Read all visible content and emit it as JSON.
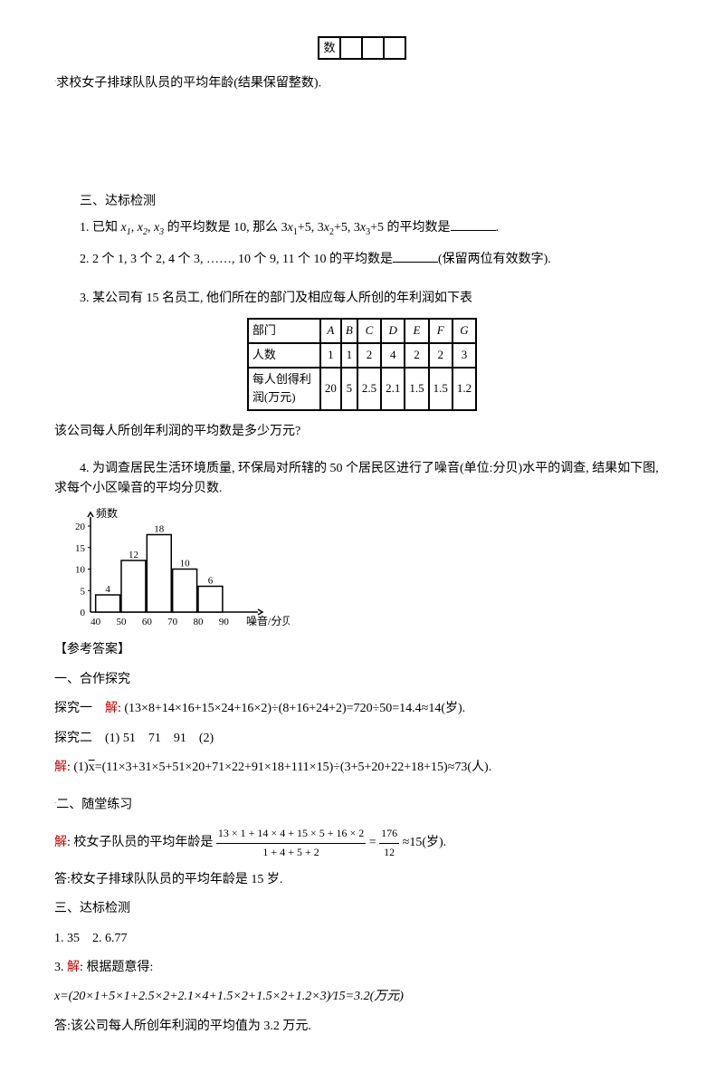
{
  "topTable": {
    "cells": [
      "数",
      "",
      "",
      ""
    ]
  },
  "q0": {
    "text": "求校女子排球队队员的平均年龄(结果保留整数)."
  },
  "sec3": {
    "title": "三、达标检测",
    "q1_prefix": "1. 已知 ",
    "q1_vars": "x₁, x₂, x₃",
    "q1_mid": " 的平均数是 10, 那么 3x₁+5, 3x₂+5, 3x₃+5 的平均数是",
    "q1_end": ".",
    "q2": "2. 2 个 1, 3 个 2, 4 个 3, ……, 10 个 9, 11 个 10 的平均数是",
    "q2_note": "(保留两位有效数字).",
    "q3_intro": "3. 某公司有 15 名员工, 他们所在的部门及相应每人所创的年利润如下表",
    "table": {
      "header": [
        "部门",
        "A",
        "B",
        "C",
        "D",
        "E",
        "F",
        "G"
      ],
      "row1_label": "人数",
      "row1": [
        "1",
        "1",
        "2",
        "4",
        "2",
        "2",
        "3"
      ],
      "row2_label": "每人创得利润(万元)",
      "row2": [
        "20",
        "5",
        "2.5",
        "2.1",
        "1.5",
        "1.5",
        "1.2"
      ]
    },
    "q3_question": "该公司每人所创年利润的平均数是多少万元?",
    "q4": "4. 为调查居民生活环境质量, 环保局对所辖的 50 个居民区进行了噪音(单位:分贝)水平的调查, 结果如下图, 求每个小区噪音的平均分贝数."
  },
  "chart": {
    "bars": [
      {
        "x": 45,
        "label": "4",
        "h": 4
      },
      {
        "x": 55,
        "label": "12",
        "h": 12
      },
      {
        "x": 65,
        "label": "18",
        "h": 18
      },
      {
        "x": 75,
        "label": "10",
        "h": 10
      },
      {
        "x": 85,
        "label": "6",
        "h": 6
      }
    ],
    "yMax": 20,
    "yTicks": [
      5,
      10,
      15,
      20
    ],
    "xTicks": [
      40,
      50,
      60,
      70,
      80,
      90
    ],
    "yLabel": "频数",
    "xLabel": "噪音/分贝"
  },
  "answers": {
    "header": "【参考答案】",
    "sec1_title": "一、合作探究",
    "tan1_label": "探究一",
    "jie": "解",
    "tan1_text": ": (13×8+14×16+15×24+16×2)÷(8+16+24+2)=720÷50=14.4≈14(岁).",
    "tan2_label": "探究二",
    "tan2_part1": "(1) 51　71　91　(2)",
    "tan2_sol": ": (1)x̄=(11×3+31×5+51×20+71×22+91×18+111×15)÷(3+5+20+22+18+15)≈73(人).",
    "sec2_title": "二、随堂练习",
    "p2_prefix": ": 校女子队员的平均年龄是",
    "frac_num": "13 × 1 + 14 × 4 + 15 × 5 + 16 × 2",
    "frac_den": "1 + 4 + 5 + 2",
    "p2_mid": " = ",
    "frac2_num": "176",
    "frac2_den": "12",
    "p2_suffix": "≈15(岁).",
    "p2_answer": "答:校女子排球队队员的平均年龄是 15 岁.",
    "sec3_title": "三、达标检测",
    "a1": "1. 35　2. 6.77",
    "a3_label": "3.",
    "a3_intro": ": 根据题意得:",
    "a3_calc": "x=(20×1+5×1+2.5×2+2.1×4+1.5×2+1.5×2+1.2×3)∕15=3.2(万元)",
    "a3_answer": "答:该公司每人所创年利润的平均值为 3.2 万元."
  }
}
